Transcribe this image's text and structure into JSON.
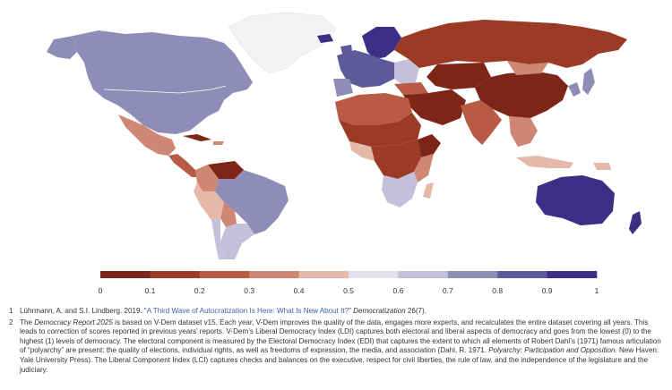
{
  "map": {
    "colors": {
      "ocean": "#ffffff",
      "no_data": "#f2f2f2",
      "border": "#ffffff"
    }
  },
  "legend": {
    "ticks": [
      "0",
      "0.1",
      "0.2",
      "0.3",
      "0.4",
      "0.5",
      "0.6",
      "0.7",
      "0.8",
      "0.9",
      "1"
    ],
    "colors": [
      "#7d2516",
      "#9b3a25",
      "#b95a44",
      "#cf8673",
      "#e5b9aa",
      "#e3e1ec",
      "#c3c1da",
      "#8f8cb8",
      "#5e5a9a",
      "#3a2f85"
    ]
  },
  "notes": [
    {
      "num": "1",
      "pre": "Lührmann, A. and S.I. Lindberg. 2019. “",
      "link": "A Third Wave of Autocratization Is Here: What Is New About It?",
      "post": "” ",
      "journal": "Democratization",
      "end": " 26(7)."
    },
    {
      "num": "2",
      "pre": "The ",
      "italic1": "Democracy Report 2025",
      "mid": " is based on V-Dem dataset v15. Each year, V-Dem improves the quality of the data, engages more experts, and recalculates the entire dataset covering all years. This leads to correction of scores reported in previous years’ reports. V-Dem’s Liberal Democracy Index (LDI) captures both electoral and liberal aspects of democracy and goes from the lowest (0) to the highest (1) levels of democracy. The electoral component is measured by the Electoral Democracy Index (EDI) that captures the extent to which all elements of Robert Dahl’s (1971) famous articulation of “polyarchy” are present: the quality of elections, individual rights, as well as freedoms of expression, the media, and association (Dahl, R. 1971. ",
      "italic2": "Polyarchy: Participation and Opposition.",
      "end": " New Haven: Yale University Press). The Liberal Component Index (LCI) captures checks and balances on the executive, respect for civil liberties, the rule of law, and the independence of the legislature and the judiciary."
    }
  ]
}
